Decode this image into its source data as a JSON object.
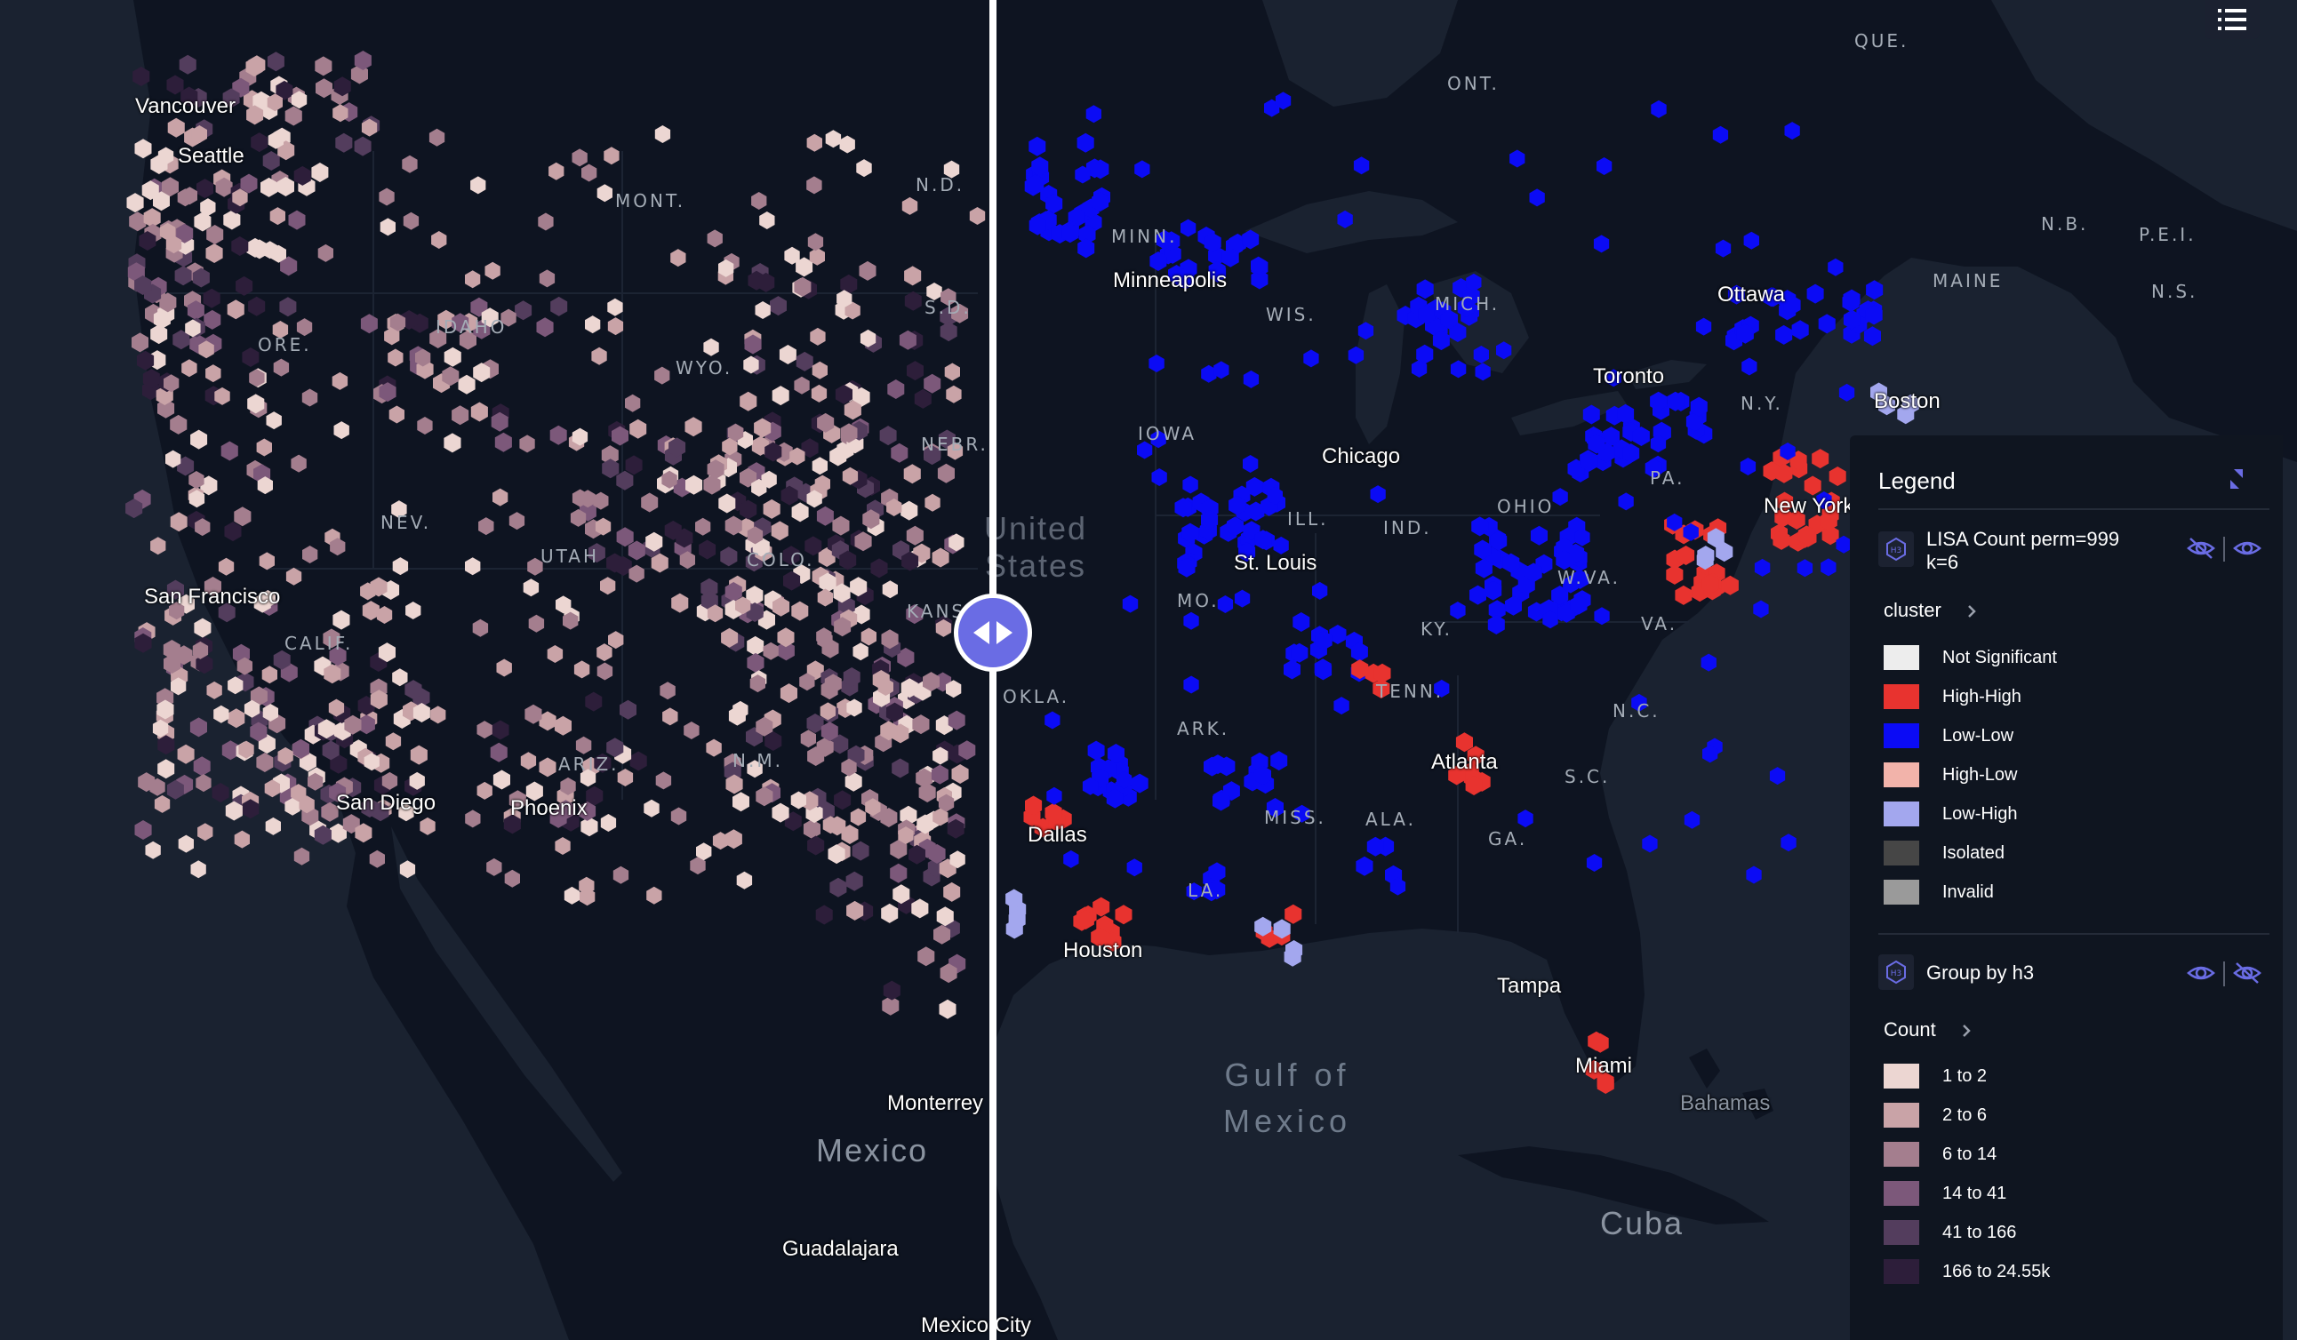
{
  "map": {
    "cities": [
      {
        "name": "Vancouver"
      },
      {
        "name": "Seattle"
      },
      {
        "name": "San Francisco"
      },
      {
        "name": "San Diego"
      },
      {
        "name": "Phoenix"
      },
      {
        "name": "United States"
      },
      {
        "name": "Minneapolis"
      },
      {
        "name": "Chicago"
      },
      {
        "name": "St. Louis"
      },
      {
        "name": "Dallas"
      },
      {
        "name": "Houston"
      },
      {
        "name": "Atlanta"
      },
      {
        "name": "Tampa"
      },
      {
        "name": "Miami"
      },
      {
        "name": "Toronto"
      },
      {
        "name": "Ottawa"
      },
      {
        "name": "New York"
      },
      {
        "name": "Boston"
      },
      {
        "name": "Monterrey"
      },
      {
        "name": "Guadalajara"
      },
      {
        "name": "Mexico City"
      },
      {
        "name": "Bahamas"
      }
    ],
    "states": [
      "QUE.",
      "ONT.",
      "MONT.",
      "N.D.",
      "MINN.",
      "IDAHO",
      "ORE.",
      "WYO.",
      "S.D.",
      "WIS.",
      "MICH.",
      "N.B.",
      "P.E.I.",
      "MAINE",
      "N.S.",
      "N.Y.",
      "IOWA",
      "NEBR.",
      "NEV.",
      "UTAH",
      "COLO.",
      "ILL.",
      "IND.",
      "OHIO",
      "PA.",
      "W.VA.",
      "VA.",
      "MO.",
      "KY.",
      "KANS.",
      "ARIZ.",
      "N.M.",
      "OKLA.",
      "ARK.",
      "TENN.",
      "N.C.",
      "S.C.",
      "MISS.",
      "ALA.",
      "GA.",
      "LA.",
      "CALIF."
    ],
    "countries": [
      "Mexico",
      "Cuba"
    ],
    "sea": [
      "Gulf of",
      "Mexico"
    ]
  },
  "legend": {
    "title": "Legend",
    "layers": [
      {
        "name": "LISA Count perm=999 k=6",
        "field": "cluster",
        "items": [
          {
            "label": "Not Significant",
            "color": "#ededed"
          },
          {
            "label": "High-High",
            "color": "#e8332f"
          },
          {
            "label": "Low-Low",
            "color": "#0b0bf5"
          },
          {
            "label": "High-Low",
            "color": "#f2b3aa"
          },
          {
            "label": "Low-High",
            "color": "#a3a7ee"
          },
          {
            "label": "Isolated",
            "color": "#464646"
          },
          {
            "label": "Invalid",
            "color": "#9a9a9a"
          }
        ]
      },
      {
        "name": "Group by h3",
        "field": "Count",
        "items": [
          {
            "label": "1 to 2",
            "color": "#ecd6d2"
          },
          {
            "label": "2 to 6",
            "color": "#c9a3a7"
          },
          {
            "label": "6 to 14",
            "color": "#a47e8e"
          },
          {
            "label": "14 to 41",
            "color": "#7c587a"
          },
          {
            "label": "41 to 166",
            "color": "#533d5d"
          },
          {
            "label": "166 to 24.55k",
            "color": "#2d1e3a"
          }
        ]
      }
    ]
  },
  "colors": {
    "water": "#1a2230",
    "land": "#0e1421",
    "split_handle": "#6a6ce4"
  }
}
